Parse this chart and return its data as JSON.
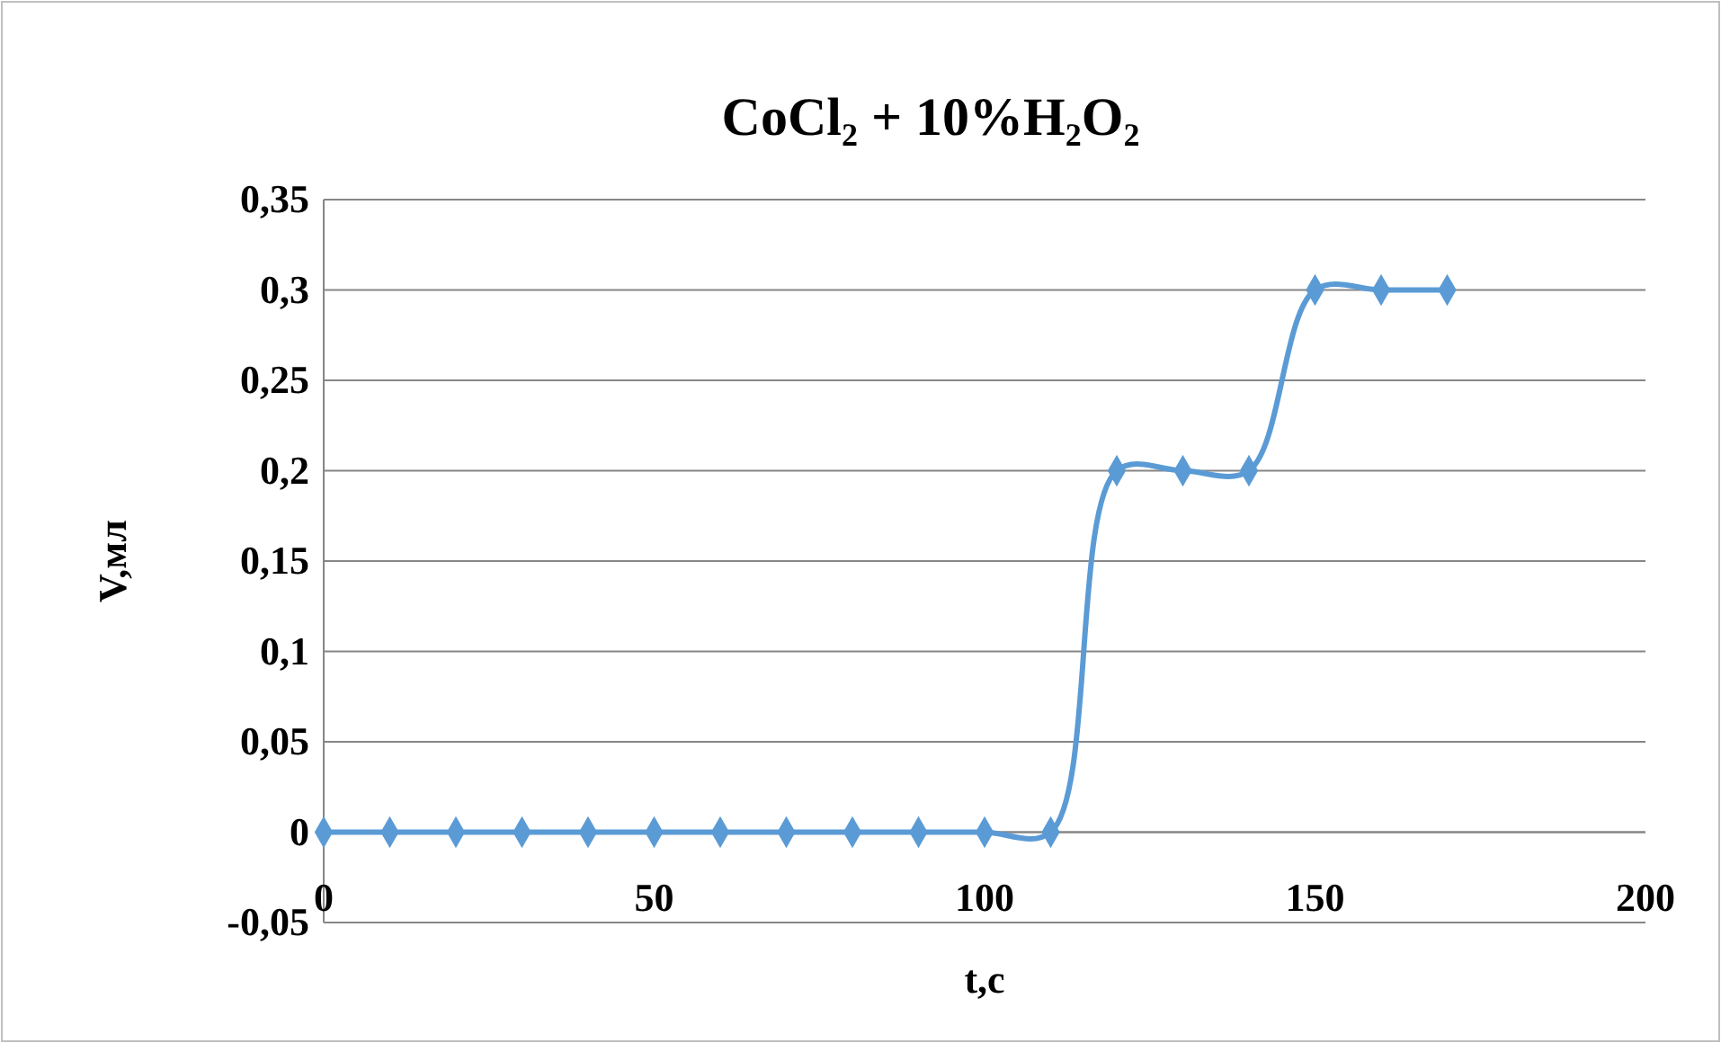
{
  "chart_data": {
    "type": "line",
    "title": "CoCl₂ + 10%H₂O₂",
    "xlabel": "t,c",
    "ylabel": "V,мл",
    "x": [
      0,
      10,
      20,
      30,
      40,
      50,
      60,
      70,
      80,
      90,
      100,
      110,
      120,
      130,
      140,
      150,
      160,
      170
    ],
    "series": [
      {
        "color": "#5b9bd5",
        "values": [
          0,
          0,
          0,
          0,
          0,
          0,
          0,
          0,
          0,
          0,
          0,
          0,
          0.2,
          0.2,
          0.2,
          0.3,
          0.3,
          0.3
        ]
      }
    ],
    "xlim": [
      0,
      200
    ],
    "xticks": [
      0,
      50,
      100,
      150,
      200
    ],
    "ylim": [
      -0.05,
      0.35
    ],
    "yticks": [
      {
        "value": -0.05,
        "label": "-0,05"
      },
      0,
      {
        "value": 0.05,
        "label": "0,05"
      },
      {
        "value": 0.1,
        "label": "0,1"
      },
      {
        "value": 0.15,
        "label": "0,15"
      },
      {
        "value": 0.2,
        "label": "0,2"
      },
      {
        "value": 0.25,
        "label": "0,25"
      },
      {
        "value": 0.3,
        "label": "0,3"
      },
      {
        "value": 0.35,
        "label": "0,35"
      }
    ],
    "grid": "y",
    "marker": "diamond",
    "line_style": "solid"
  }
}
